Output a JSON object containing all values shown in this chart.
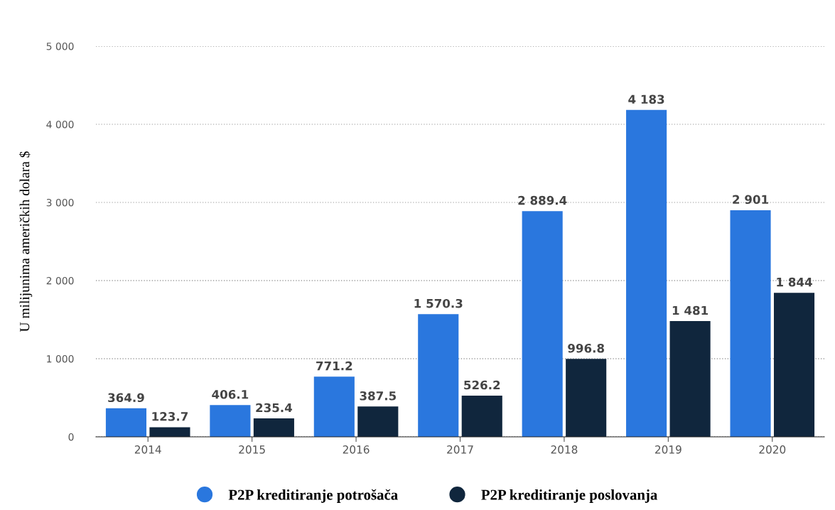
{
  "chart_data": {
    "type": "bar",
    "ylabel": "U milijunima američkih dolara $",
    "categories": [
      "2014",
      "2015",
      "2016",
      "2017",
      "2018",
      "2019",
      "2020"
    ],
    "series": [
      {
        "name": "P2P kreditiranje potrošača",
        "color": "#2a77de",
        "values": [
          364.9,
          406.1,
          771.2,
          1570.3,
          2889.4,
          4183,
          2901
        ],
        "value_labels": [
          "364.9",
          "406.1",
          "771.2",
          "1 570.3",
          "2 889.4",
          "4 183",
          "2 901"
        ]
      },
      {
        "name": "P2P kreditiranje poslovanja",
        "color": "#10263d",
        "values": [
          123.7,
          235.4,
          387.5,
          526.2,
          996.8,
          1481,
          1844
        ],
        "value_labels": [
          "123.7",
          "235.4",
          "387.5",
          "526.2",
          "996.8",
          "1 481",
          "1 844"
        ]
      }
    ],
    "ylim": [
      0,
      5000
    ],
    "yticks": [
      0,
      {
        "value": 1000,
        "label": "1 000"
      },
      {
        "value": 2000,
        "label": "2 000"
      },
      {
        "value": 3000,
        "label": "3 000"
      },
      {
        "value": 4000,
        "label": "4 000"
      },
      {
        "value": 5000,
        "label": "5 000"
      }
    ],
    "grid": "y",
    "legend": "bottom",
    "marker": "circle"
  }
}
